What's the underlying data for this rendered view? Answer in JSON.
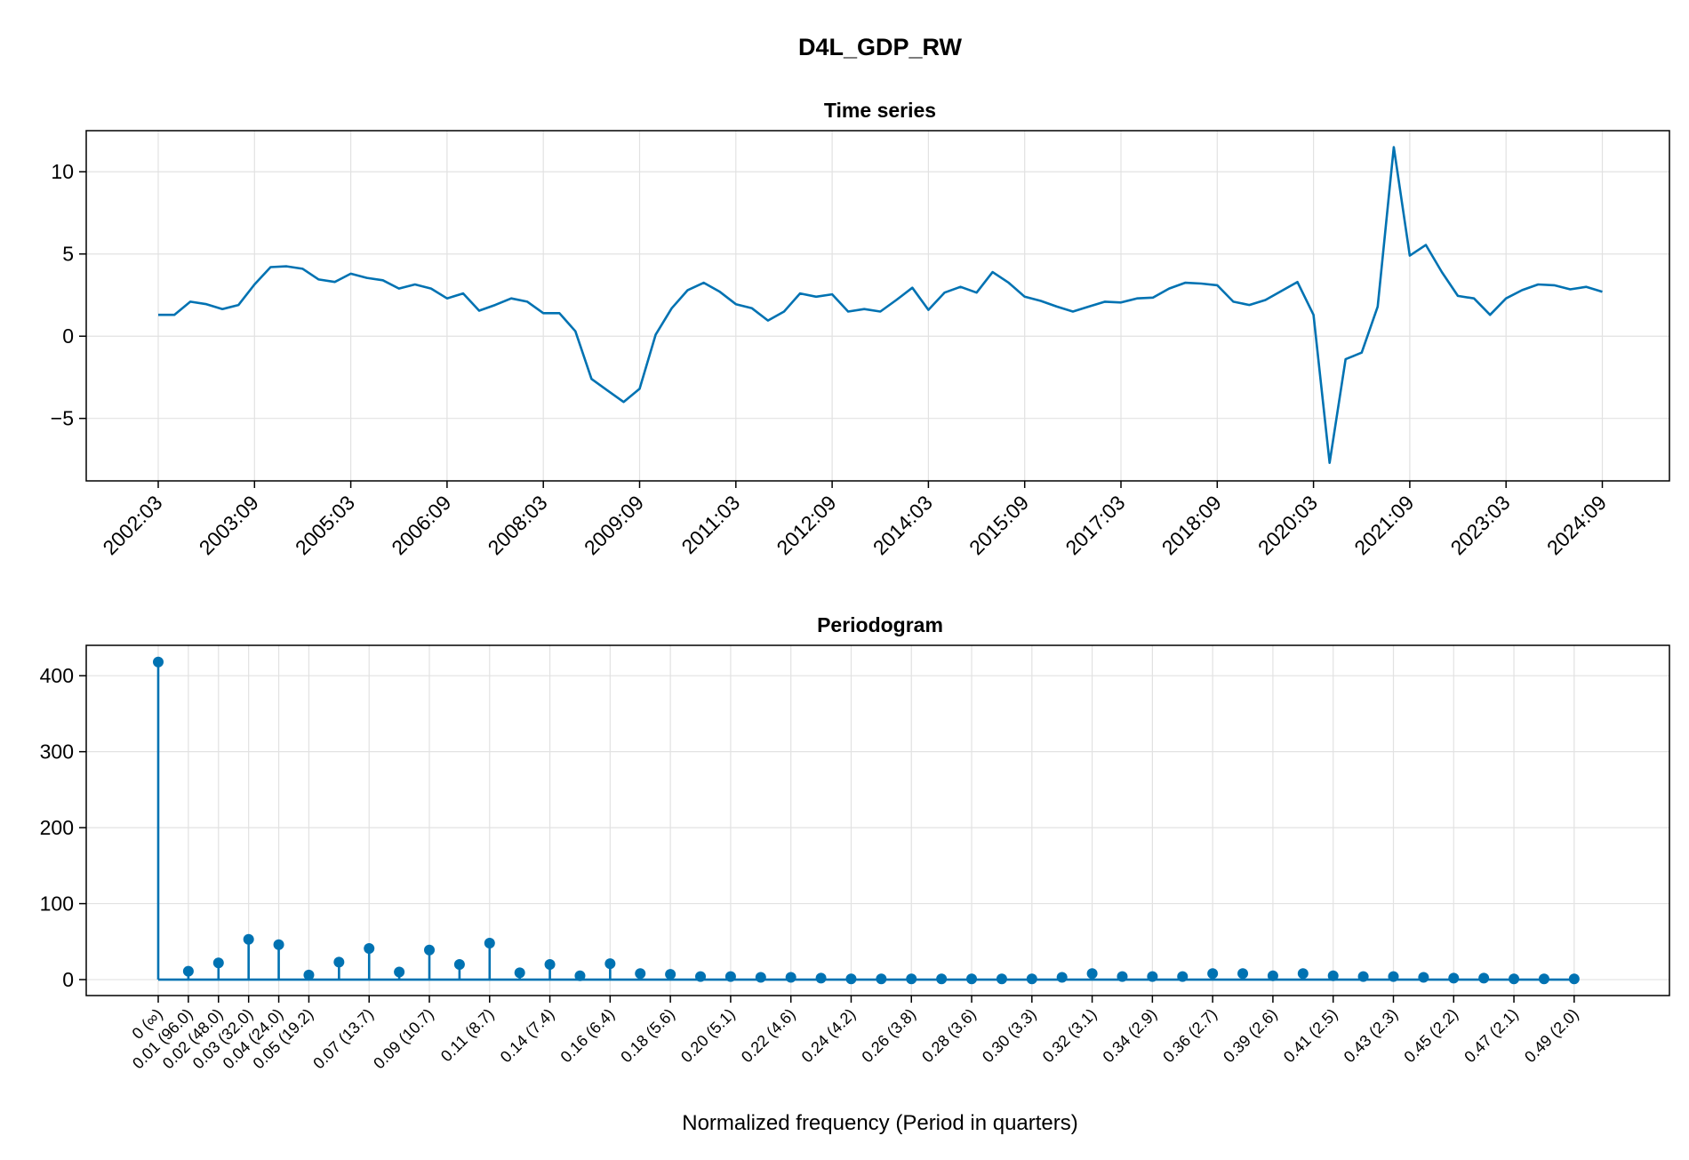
{
  "figure_title": "D4L_GDP_RW",
  "colors": {
    "series": "#0072b2",
    "grid": "#e2e2e2",
    "axis": "#000000"
  },
  "chart_data": [
    {
      "type": "line",
      "title": "Time series",
      "xlabel": "",
      "ylabel": "",
      "ylim": [
        -8.8,
        12.5
      ],
      "yticks": [
        -5,
        0,
        5,
        10
      ],
      "ytick_labels": [
        "−5",
        "0",
        "5",
        "10"
      ],
      "xtick_labels": [
        "2002:03",
        "2003:09",
        "2005:03",
        "2006:09",
        "2008:03",
        "2009:09",
        "2011:03",
        "2012:09",
        "2014:03",
        "2015:09",
        "2017:03",
        "2018:09",
        "2020:03",
        "2021:09",
        "2023:03",
        "2024:09"
      ],
      "xtick_every": 6,
      "grid": true,
      "series": [
        {
          "name": "D4L_GDP_RW",
          "start": "2002:03",
          "values": [
            1.3,
            1.3,
            2.1,
            1.95,
            1.65,
            1.9,
            3.15,
            4.2,
            4.25,
            4.1,
            3.45,
            3.3,
            3.8,
            3.55,
            3.4,
            2.9,
            3.15,
            2.9,
            2.3,
            2.6,
            1.55,
            1.9,
            2.3,
            2.1,
            1.4,
            1.4,
            0.3,
            -2.6,
            -3.3,
            -4.0,
            -3.2,
            0.1,
            1.7,
            2.8,
            3.25,
            2.7,
            1.95,
            1.7,
            0.95,
            1.5,
            2.6,
            2.4,
            2.55,
            1.5,
            1.65,
            1.5,
            2.2,
            2.95,
            1.6,
            2.65,
            3.0,
            2.65,
            3.9,
            3.25,
            2.4,
            2.15,
            1.8,
            1.5,
            1.8,
            2.1,
            2.05,
            2.3,
            2.35,
            2.9,
            3.25,
            3.2,
            3.1,
            2.1,
            1.9,
            2.2,
            2.75,
            3.3,
            1.3,
            -7.7,
            -1.4,
            -1.0,
            1.8,
            11.5,
            4.9,
            5.55,
            3.9,
            2.45,
            2.3,
            1.3,
            2.3,
            2.8,
            3.15,
            3.1,
            2.85,
            3.0,
            2.7
          ]
        }
      ]
    },
    {
      "type": "stem",
      "title": "Periodogram",
      "xlabel": "Normalized frequency (Period in quarters)",
      "ylabel": "",
      "ylim": [
        -21,
        440
      ],
      "yticks": [
        0,
        100,
        200,
        300,
        400
      ],
      "ytick_labels": [
        "0",
        "100",
        "200",
        "300",
        "400"
      ],
      "grid": true,
      "values": [
        418,
        11,
        22,
        53,
        46,
        6,
        23,
        41,
        10,
        39,
        20,
        48,
        9,
        20,
        5,
        21,
        8,
        7,
        4,
        4,
        3,
        3,
        2,
        1,
        1,
        1,
        1,
        1,
        1,
        1,
        3,
        8,
        4,
        4,
        4,
        8,
        8,
        5,
        8,
        5,
        4,
        4,
        3,
        2,
        2,
        1,
        1,
        1
      ],
      "xtick_positions": [
        0,
        1,
        2,
        3,
        4,
        5,
        7,
        9,
        11,
        13,
        15,
        17,
        19,
        21,
        23,
        25,
        27,
        29,
        31,
        33,
        35,
        37,
        39,
        41,
        43,
        45,
        47
      ],
      "xtick_labels": [
        "0 (∞)",
        "0.01 (96.0)",
        "0.02 (48.0)",
        "0.03 (32.0)",
        "0.04 (24.0)",
        "0.05 (19.2)",
        "0.07 (13.7)",
        "0.09 (10.7)",
        "0.11 (8.7)",
        "0.14 (7.4)",
        "0.16 (6.4)",
        "0.18 (5.6)",
        "0.20 (5.1)",
        "0.22 (4.6)",
        "0.24 (4.2)",
        "0.26 (3.8)",
        "0.28 (3.6)",
        "0.30 (3.3)",
        "0.32 (3.1)",
        "0.34 (2.9)",
        "0.36 (2.7)",
        "0.39 (2.6)",
        "0.41 (2.5)",
        "0.43 (2.3)",
        "0.45 (2.2)",
        "0.47 (2.1)",
        "0.49 (2.0)"
      ]
    }
  ]
}
